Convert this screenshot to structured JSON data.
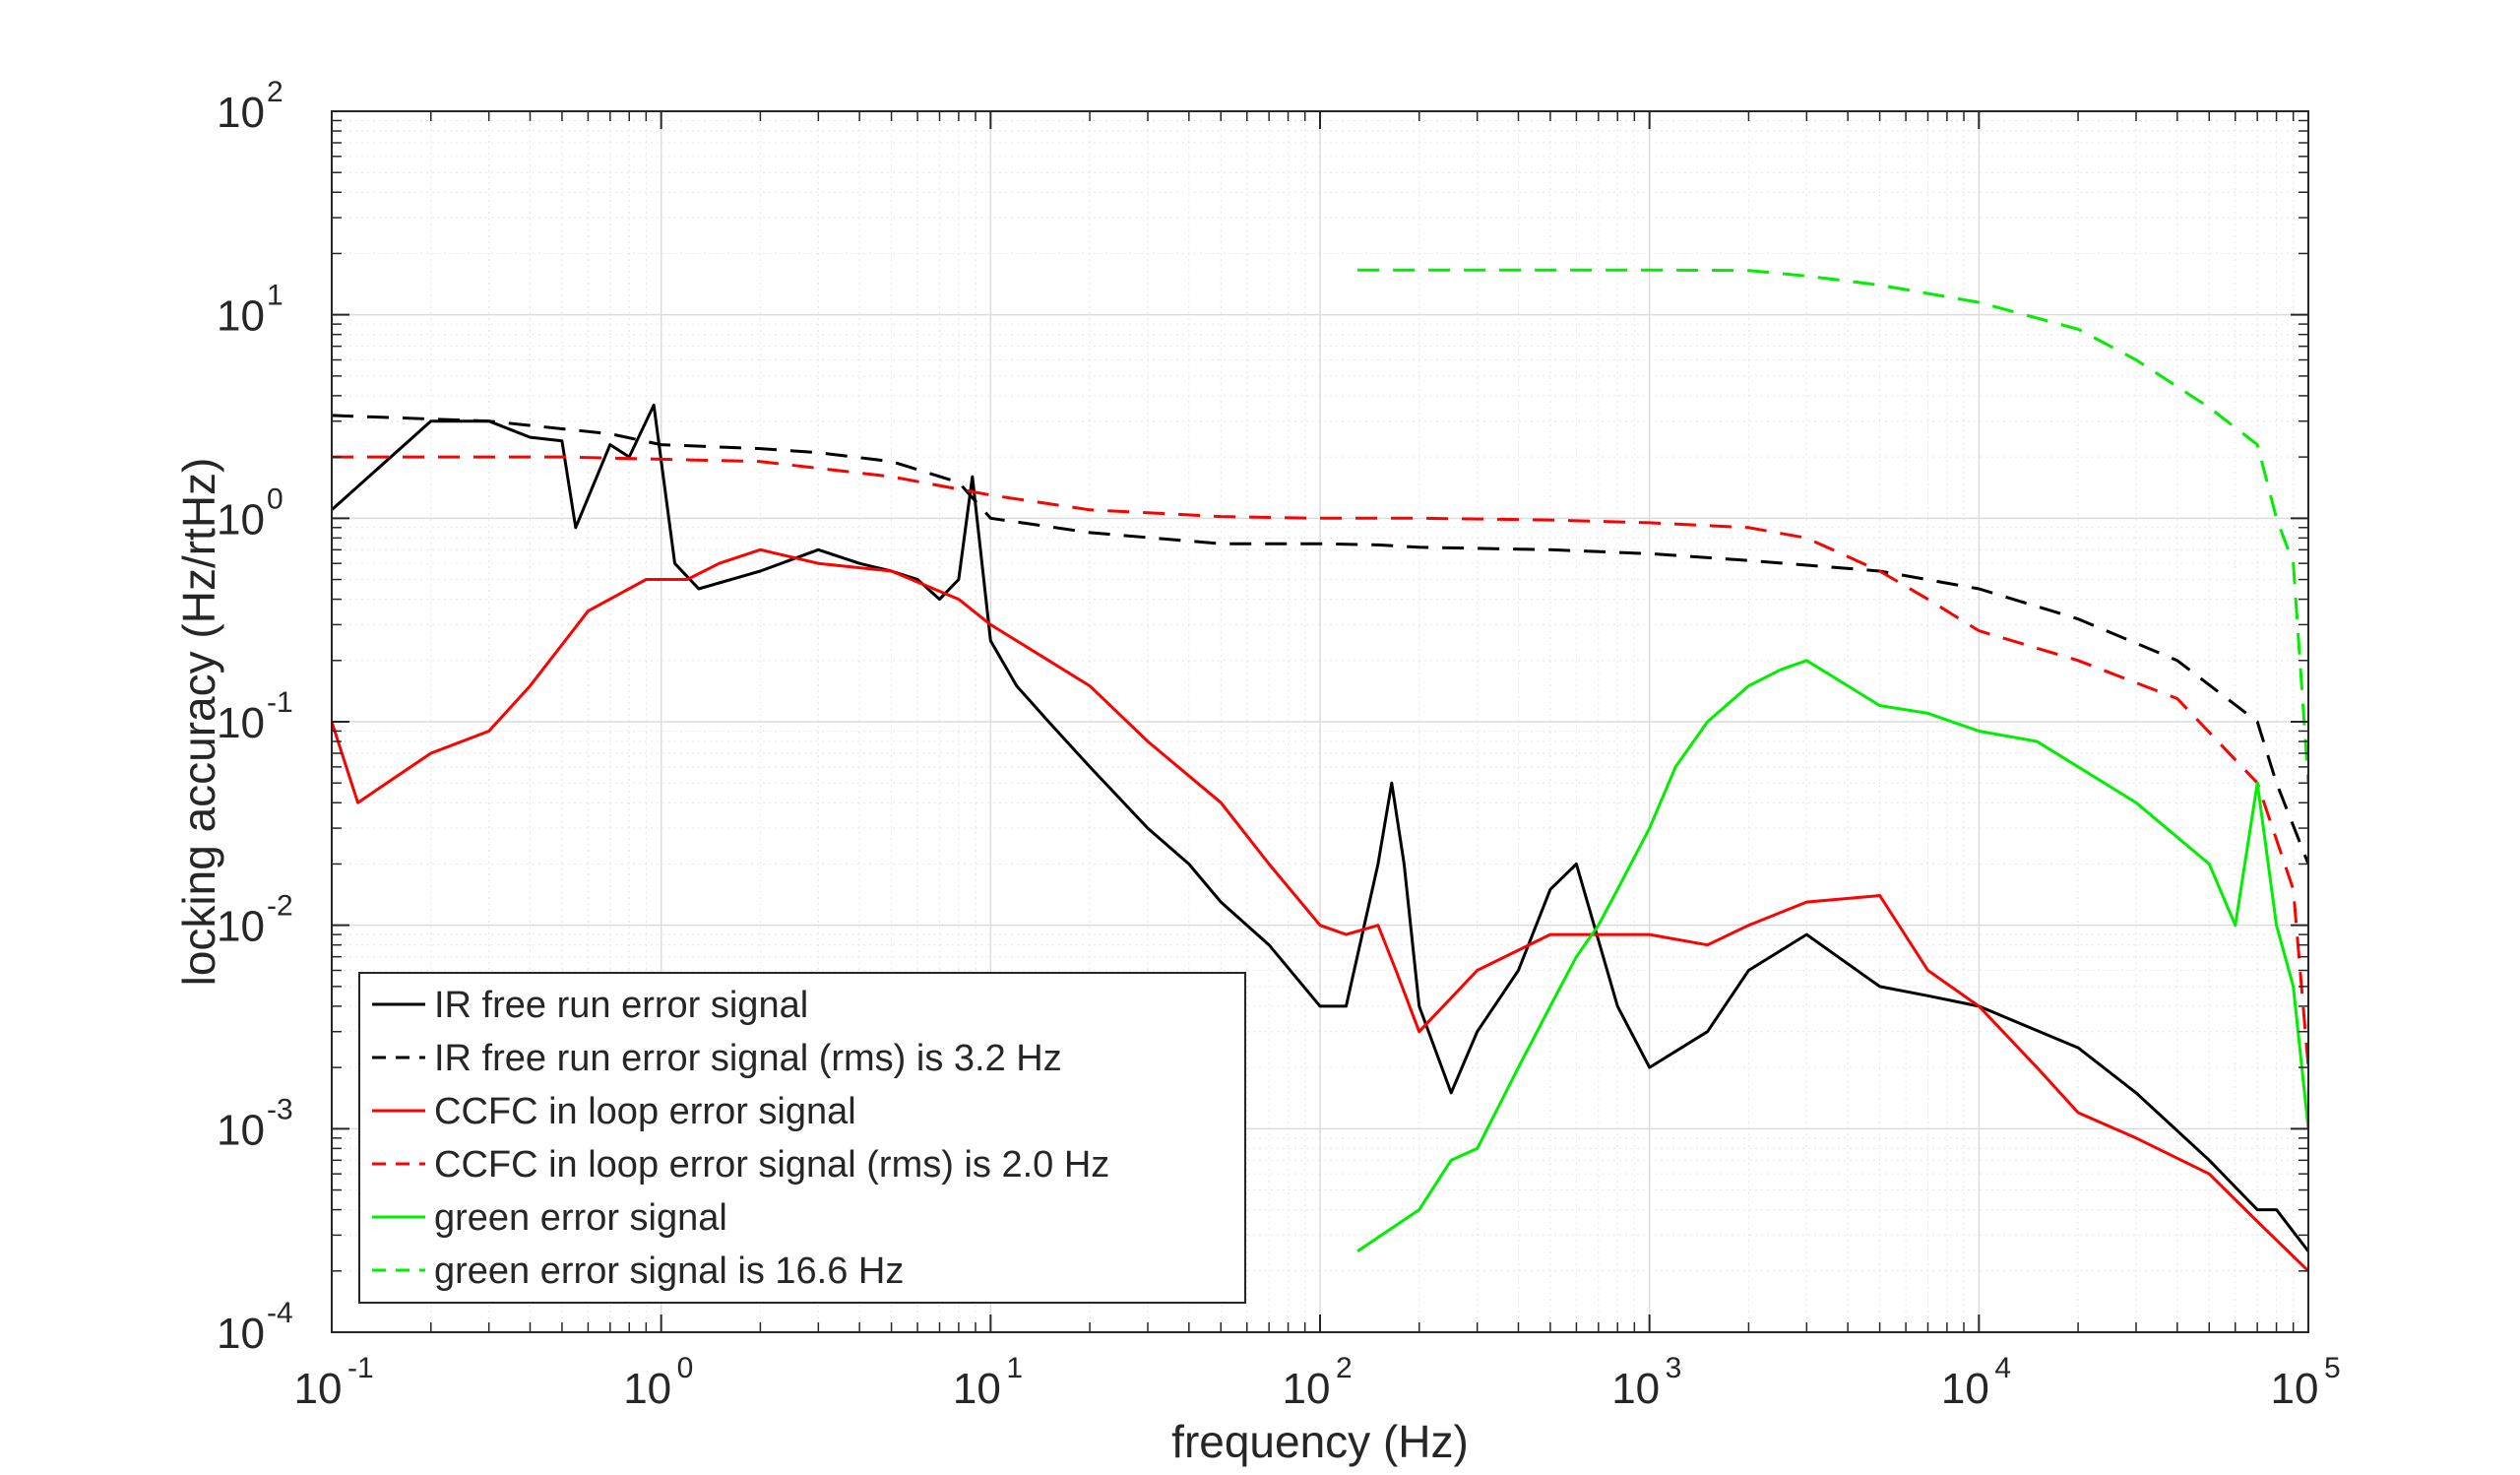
{
  "chart_data": {
    "type": "line",
    "title": "",
    "xlabel": "frequency (Hz)",
    "ylabel": "locking accuracy (Hz/rtHz)",
    "xscale": "log",
    "yscale": "log",
    "xlim": [
      0.1,
      100000
    ],
    "ylim": [
      0.0001,
      100
    ],
    "grid": "on (major and minor)",
    "legend_position": "bottom-left",
    "x_ticks": [
      {
        "base": "10",
        "exp": "-1"
      },
      {
        "base": "10",
        "exp": "0"
      },
      {
        "base": "10",
        "exp": "1"
      },
      {
        "base": "10",
        "exp": "2"
      },
      {
        "base": "10",
        "exp": "3"
      },
      {
        "base": "10",
        "exp": "4"
      },
      {
        "base": "10",
        "exp": "5"
      }
    ],
    "y_ticks": [
      {
        "base": "10",
        "exp": "-4"
      },
      {
        "base": "10",
        "exp": "-3"
      },
      {
        "base": "10",
        "exp": "-2"
      },
      {
        "base": "10",
        "exp": "-1"
      },
      {
        "base": "10",
        "exp": "0"
      },
      {
        "base": "10",
        "exp": "1"
      },
      {
        "base": "10",
        "exp": "2"
      }
    ],
    "series": [
      {
        "name": "IR free run error signal",
        "color": "#000000",
        "style": "solid",
        "x": [
          0.1,
          0.2,
          0.3,
          0.4,
          0.5,
          0.55,
          0.7,
          0.8,
          0.95,
          1.1,
          1.3,
          2,
          3,
          4,
          5,
          6,
          7,
          8,
          8.8,
          10,
          12,
          15,
          20,
          30,
          40,
          50,
          70,
          100,
          120,
          150,
          165,
          180,
          200,
          250,
          300,
          400,
          500,
          600,
          800,
          1000,
          1500,
          2000,
          3000,
          5000,
          7000,
          10000,
          20000,
          30000,
          50000,
          70000,
          80000,
          100000
        ],
        "y": [
          1.1,
          3.0,
          3.0,
          2.5,
          2.4,
          0.9,
          2.3,
          2.0,
          3.6,
          0.6,
          0.45,
          0.55,
          0.7,
          0.6,
          0.55,
          0.5,
          0.4,
          0.5,
          1.6,
          0.25,
          0.15,
          0.1,
          0.06,
          0.03,
          0.02,
          0.013,
          0.008,
          0.004,
          0.004,
          0.02,
          0.05,
          0.02,
          0.004,
          0.0015,
          0.003,
          0.006,
          0.015,
          0.02,
          0.004,
          0.002,
          0.003,
          0.006,
          0.009,
          0.005,
          0.0045,
          0.004,
          0.0025,
          0.0015,
          0.0007,
          0.0004,
          0.0004,
          0.00025
        ]
      },
      {
        "name": "IR free run error signal (rms) is 3.2 Hz",
        "color": "#000000",
        "style": "dashed",
        "x": [
          0.1,
          0.3,
          0.7,
          1,
          2,
          3,
          5,
          8,
          10,
          20,
          50,
          100,
          150,
          200,
          500,
          1000,
          2000,
          5000,
          10000,
          20000,
          40000,
          70000,
          80000,
          100000
        ],
        "y": [
          3.2,
          3.0,
          2.6,
          2.3,
          2.2,
          2.1,
          1.9,
          1.5,
          1.0,
          0.85,
          0.75,
          0.75,
          0.74,
          0.72,
          0.7,
          0.67,
          0.62,
          0.55,
          0.45,
          0.32,
          0.2,
          0.1,
          0.05,
          0.02
        ]
      },
      {
        "name": "CCFC in loop error signal",
        "color": "#ff0000",
        "style": "solid",
        "x": [
          0.1,
          0.12,
          0.2,
          0.3,
          0.4,
          0.6,
          0.9,
          1.2,
          1.5,
          2,
          3,
          5,
          8,
          10,
          15,
          20,
          30,
          50,
          70,
          100,
          120,
          150,
          170,
          200,
          300,
          500,
          1000,
          1500,
          2000,
          3000,
          5000,
          7000,
          10000,
          15000,
          20000,
          30000,
          50000,
          70000,
          100000
        ],
        "y": [
          0.1,
          0.04,
          0.07,
          0.09,
          0.15,
          0.35,
          0.5,
          0.5,
          0.6,
          0.7,
          0.6,
          0.55,
          0.4,
          0.3,
          0.2,
          0.15,
          0.08,
          0.04,
          0.02,
          0.01,
          0.009,
          0.01,
          0.006,
          0.003,
          0.006,
          0.009,
          0.009,
          0.008,
          0.01,
          0.013,
          0.014,
          0.006,
          0.004,
          0.002,
          0.0012,
          0.0009,
          0.0006,
          0.00035,
          0.0002
        ]
      },
      {
        "name": "CCFC in loop error signal (rms) is 2.0 Hz",
        "color": "#ff0000",
        "style": "dashed",
        "x": [
          0.1,
          0.5,
          1,
          2,
          5,
          10,
          20,
          50,
          100,
          200,
          500,
          1000,
          2000,
          3000,
          5000,
          7000,
          10000,
          20000,
          40000,
          70000,
          90000,
          100000
        ],
        "y": [
          2.0,
          2.0,
          1.95,
          1.9,
          1.6,
          1.3,
          1.1,
          1.02,
          1.0,
          1.0,
          0.98,
          0.95,
          0.9,
          0.8,
          0.55,
          0.4,
          0.28,
          0.2,
          0.13,
          0.05,
          0.015,
          0.002
        ]
      },
      {
        "name": "green error signal",
        "color": "#00ee00",
        "style": "solid",
        "x": [
          130,
          200,
          250,
          300,
          400,
          500,
          600,
          700,
          800,
          1000,
          1200,
          1500,
          2000,
          2500,
          3000,
          4000,
          5000,
          7000,
          10000,
          15000,
          20000,
          30000,
          50000,
          60000,
          70000,
          80000,
          90000,
          100000
        ],
        "y": [
          0.00025,
          0.0004,
          0.0007,
          0.0008,
          0.002,
          0.004,
          0.007,
          0.01,
          0.015,
          0.03,
          0.06,
          0.1,
          0.15,
          0.18,
          0.2,
          0.15,
          0.12,
          0.11,
          0.09,
          0.08,
          0.06,
          0.04,
          0.02,
          0.01,
          0.05,
          0.01,
          0.005,
          0.001
        ]
      },
      {
        "name": "green error signal is 16.6 Hz",
        "color": "#00ee00",
        "style": "dashed",
        "x": [
          130,
          500,
          1000,
          2000,
          3000,
          5000,
          10000,
          20000,
          30000,
          50000,
          70000,
          80000,
          90000,
          100000
        ],
        "y": [
          16.6,
          16.6,
          16.6,
          16.5,
          15.5,
          14,
          11.5,
          8.5,
          6,
          3.5,
          2.3,
          1.0,
          0.6,
          0.05
        ]
      }
    ]
  }
}
